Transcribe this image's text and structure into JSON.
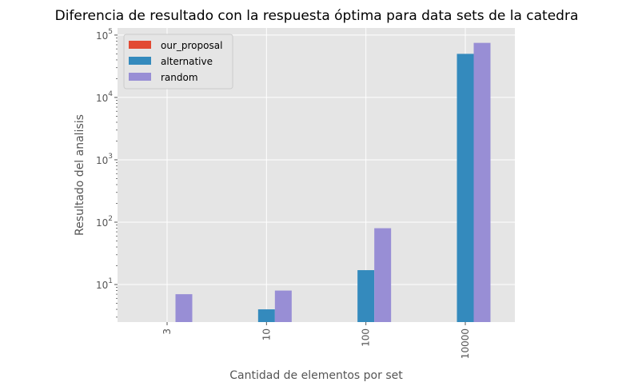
{
  "chart_data": {
    "type": "bar",
    "title": "Diferencia de resultado con la respuesta óptima para data sets de la catedra",
    "xlabel": "Cantidad de elementos por set",
    "ylabel": "Resultado del analisis",
    "categories": [
      "3",
      "10",
      "100",
      "10000"
    ],
    "yscale": "log",
    "ylim": [
      2.5,
      130000
    ],
    "yticks": [
      {
        "value": 10,
        "base": "10",
        "exp": "1"
      },
      {
        "value": 100,
        "base": "10",
        "exp": "2"
      },
      {
        "value": 1000,
        "base": "10",
        "exp": "3"
      },
      {
        "value": 10000,
        "base": "10",
        "exp": "4"
      },
      {
        "value": 100000,
        "base": "10",
        "exp": "5"
      }
    ],
    "grid": true,
    "legend_position": "top-left",
    "series": [
      {
        "name": "our_proposal",
        "color": "#E24A33",
        "values": [
          0,
          0,
          0,
          0
        ]
      },
      {
        "name": "alternative",
        "color": "#348ABD",
        "values": [
          0,
          4,
          17,
          50000
        ]
      },
      {
        "name": "random",
        "color": "#988ED5",
        "values": [
          7,
          8,
          80,
          75000
        ]
      }
    ]
  }
}
